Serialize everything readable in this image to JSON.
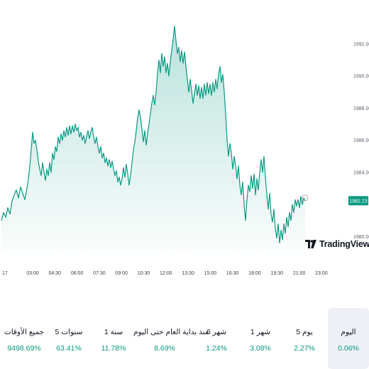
{
  "chart_data": {
    "type": "area",
    "y_ticks": [
      "1992.00",
      "1990.00",
      "1988.00",
      "1986.00",
      "1984.00",
      "1980.00"
    ],
    "y_tick_values": [
      1992,
      1990,
      1988,
      1986,
      1984,
      1980
    ],
    "ylim": [
      1979,
      1993.5
    ],
    "x_ticks": [
      "17",
      "03:00",
      "04:30",
      "06:00",
      "07:30",
      "09:00",
      "10:30",
      "12:00",
      "13:30",
      "15:00",
      "16:30",
      "18:00",
      "19:30",
      "21:00",
      "23:00"
    ],
    "last_price": "1982.23",
    "last_value": 1982.23,
    "line_color": "#089981",
    "series_points": [
      [
        0,
        1981.0
      ],
      [
        3,
        1981.5
      ],
      [
        6,
        1981.2
      ],
      [
        9,
        1981.8
      ],
      [
        12,
        1981.4
      ],
      [
        15,
        1982.2
      ],
      [
        18,
        1982.6
      ],
      [
        21,
        1982.9
      ],
      [
        24,
        1982.4
      ],
      [
        27,
        1983.1
      ],
      [
        30,
        1982.7
      ],
      [
        33,
        1982.3
      ],
      [
        36,
        1983.0
      ],
      [
        38,
        1983.6
      ],
      [
        40,
        1984.4
      ],
      [
        42,
        1985.4
      ],
      [
        44,
        1986.5
      ],
      [
        46,
        1985.8
      ],
      [
        48,
        1986.0
      ],
      [
        50,
        1985.4
      ],
      [
        52,
        1984.7
      ],
      [
        54,
        1984.2
      ],
      [
        56,
        1983.8
      ],
      [
        58,
        1984.6
      ],
      [
        60,
        1984.0
      ],
      [
        62,
        1983.5
      ],
      [
        64,
        1984.2
      ],
      [
        66,
        1983.8
      ],
      [
        68,
        1984.6
      ],
      [
        70,
        1984.0
      ],
      [
        72,
        1985.2
      ],
      [
        74,
        1984.8
      ],
      [
        76,
        1985.6
      ],
      [
        78,
        1985.3
      ],
      [
        80,
        1986.2
      ],
      [
        82,
        1985.8
      ],
      [
        84,
        1986.4
      ],
      [
        86,
        1986.0
      ],
      [
        88,
        1986.6
      ],
      [
        90,
        1986.2
      ],
      [
        92,
        1986.8
      ],
      [
        94,
        1986.3
      ],
      [
        96,
        1986.9
      ],
      [
        98,
        1986.4
      ],
      [
        100,
        1986.9
      ],
      [
        102,
        1986.5
      ],
      [
        104,
        1987.0
      ],
      [
        106,
        1986.6
      ],
      [
        108,
        1986.8
      ],
      [
        110,
        1986.2
      ],
      [
        112,
        1986.5
      ],
      [
        114,
        1986.0
      ],
      [
        116,
        1986.3
      ],
      [
        118,
        1985.8
      ],
      [
        120,
        1986.2
      ],
      [
        122,
        1986.6
      ],
      [
        124,
        1986.1
      ],
      [
        126,
        1986.5
      ],
      [
        128,
        1986.8
      ],
      [
        130,
        1986.2
      ],
      [
        132,
        1985.8
      ],
      [
        134,
        1986.2
      ],
      [
        136,
        1985.6
      ],
      [
        138,
        1985.2
      ],
      [
        140,
        1985.6
      ],
      [
        142,
        1984.9
      ],
      [
        144,
        1985.2
      ],
      [
        146,
        1984.6
      ],
      [
        148,
        1984.9
      ],
      [
        150,
        1984.4
      ],
      [
        152,
        1984.8
      ],
      [
        154,
        1984.3
      ],
      [
        156,
        1984.7
      ],
      [
        158,
        1984.2
      ],
      [
        160,
        1983.8
      ],
      [
        162,
        1984.1
      ],
      [
        164,
        1983.4
      ],
      [
        166,
        1983.7
      ],
      [
        168,
        1983.2
      ],
      [
        170,
        1983.6
      ],
      [
        172,
        1984.3
      ],
      [
        174,
        1983.7
      ],
      [
        176,
        1984.5
      ],
      [
        178,
        1983.9
      ],
      [
        180,
        1983.2
      ],
      [
        182,
        1983.8
      ],
      [
        184,
        1984.6
      ],
      [
        186,
        1985.4
      ],
      [
        188,
        1985.9
      ],
      [
        190,
        1986.6
      ],
      [
        192,
        1987.4
      ],
      [
        194,
        1987.9
      ],
      [
        196,
        1987.4
      ],
      [
        198,
        1986.7
      ],
      [
        200,
        1985.9
      ],
      [
        202,
        1986.6
      ],
      [
        204,
        1985.7
      ],
      [
        206,
        1986.4
      ],
      [
        208,
        1987.0
      ],
      [
        210,
        1987.7
      ],
      [
        212,
        1988.3
      ],
      [
        214,
        1988.8
      ],
      [
        216,
        1988.2
      ],
      [
        218,
        1989.0
      ],
      [
        220,
        1990.2
      ],
      [
        222,
        1991.0
      ],
      [
        224,
        1990.2
      ],
      [
        226,
        1991.4
      ],
      [
        228,
        1990.6
      ],
      [
        230,
        1991.2
      ],
      [
        232,
        1990.2
      ],
      [
        234,
        1990.8
      ],
      [
        236,
        1990.0
      ],
      [
        238,
        1990.9
      ],
      [
        240,
        1991.6
      ],
      [
        242,
        1992.3
      ],
      [
        244,
        1993.1
      ],
      [
        246,
        1992.2
      ],
      [
        248,
        1991.4
      ],
      [
        250,
        1991.8
      ],
      [
        252,
        1990.9
      ],
      [
        254,
        1991.6
      ],
      [
        256,
        1990.8
      ],
      [
        258,
        1991.5
      ],
      [
        260,
        1990.6
      ],
      [
        262,
        1989.8
      ],
      [
        264,
        1989.0
      ],
      [
        266,
        1989.8
      ],
      [
        268,
        1989.1
      ],
      [
        270,
        1988.3
      ],
      [
        272,
        1988.9
      ],
      [
        274,
        1989.5
      ],
      [
        276,
        1988.8
      ],
      [
        278,
        1989.4
      ],
      [
        280,
        1988.6
      ],
      [
        282,
        1989.3
      ],
      [
        284,
        1988.6
      ],
      [
        286,
        1989.5
      ],
      [
        288,
        1988.8
      ],
      [
        290,
        1989.6
      ],
      [
        292,
        1988.9
      ],
      [
        294,
        1989.5
      ],
      [
        296,
        1988.8
      ],
      [
        298,
        1989.6
      ],
      [
        300,
        1989.0
      ],
      [
        302,
        1989.8
      ],
      [
        304,
        1989.2
      ],
      [
        306,
        1990.1
      ],
      [
        308,
        1990.6
      ],
      [
        310,
        1989.6
      ],
      [
        312,
        1990.1
      ],
      [
        314,
        1989.0
      ],
      [
        316,
        1987.6
      ],
      [
        318,
        1986.0
      ],
      [
        320,
        1985.0
      ],
      [
        322,
        1985.8
      ],
      [
        324,
        1985.2
      ],
      [
        326,
        1984.2
      ],
      [
        328,
        1985.0
      ],
      [
        330,
        1984.4
      ],
      [
        332,
        1983.6
      ],
      [
        334,
        1984.4
      ],
      [
        336,
        1983.2
      ],
      [
        338,
        1982.6
      ],
      [
        340,
        1983.4
      ],
      [
        342,
        1982.0
      ],
      [
        344,
        1981.0
      ],
      [
        346,
        1982.3
      ],
      [
        348,
        1983.2
      ],
      [
        350,
        1982.8
      ],
      [
        352,
        1983.8
      ],
      [
        354,
        1983.0
      ],
      [
        356,
        1983.9
      ],
      [
        358,
        1982.6
      ],
      [
        360,
        1983.6
      ],
      [
        362,
        1982.9
      ],
      [
        364,
        1984.0
      ],
      [
        366,
        1984.8
      ],
      [
        368,
        1984.0
      ],
      [
        370,
        1985.0
      ],
      [
        372,
        1983.7
      ],
      [
        374,
        1982.6
      ],
      [
        376,
        1981.7
      ],
      [
        378,
        1982.7
      ],
      [
        380,
        1981.4
      ],
      [
        382,
        1980.9
      ],
      [
        384,
        1981.7
      ],
      [
        386,
        1980.5
      ],
      [
        388,
        1979.9
      ],
      [
        390,
        1980.8
      ],
      [
        392,
        1979.6
      ],
      [
        394,
        1980.4
      ],
      [
        396,
        1979.8
      ],
      [
        398,
        1980.8
      ],
      [
        400,
        1980.2
      ],
      [
        402,
        1981.2
      ],
      [
        404,
        1980.6
      ],
      [
        406,
        1981.5
      ],
      [
        408,
        1981.0
      ],
      [
        410,
        1982.0
      ],
      [
        412,
        1981.5
      ],
      [
        414,
        1982.3
      ],
      [
        416,
        1981.9
      ],
      [
        418,
        1982.3
      ],
      [
        420,
        1981.8
      ],
      [
        422,
        1982.5
      ],
      [
        424,
        1982.0
      ],
      [
        426,
        1982.4
      ],
      [
        428,
        1982.23
      ]
    ]
  },
  "branding": {
    "logo_text": "TradingView"
  },
  "periods": [
    {
      "label": "اليوم",
      "value": "0.06%",
      "active": true
    },
    {
      "label": "5 يوم",
      "value": "2.27%",
      "active": false
    },
    {
      "label": "1 شهر",
      "value": "3.08%",
      "active": false
    },
    {
      "label": "6 شهر",
      "value": "1.24%",
      "active": false
    },
    {
      "label": "منذ بداية العام حتى اليوم",
      "value": "8.69%",
      "active": false
    },
    {
      "label": "1 سنة",
      "value": "11.78%",
      "active": false
    },
    {
      "label": "5 سنوات",
      "value": "63.41%",
      "active": false
    },
    {
      "label": "جميع الأوقات",
      "value": "9498.69%",
      "active": false
    }
  ]
}
